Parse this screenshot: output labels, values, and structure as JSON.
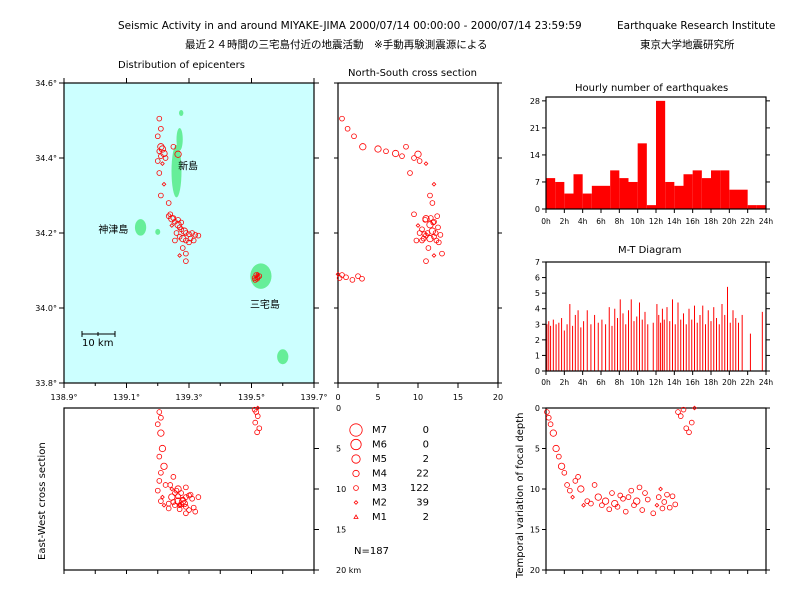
{
  "header": {
    "title_en": "Seismic Activity in and around MIYAKE-JIMA 2000/07/14 00:00:00 - 2000/07/14 23:59:59",
    "institute_en": "Earthquake Research Institute",
    "title_ja": "最近２４時間の三宅島付近の地震活動　※手動再験測震源による",
    "institute_ja": "東京大学地震研究所"
  },
  "colors": {
    "sea": "#ccffff",
    "land": "#66ee99",
    "event": "#ff0000",
    "axis": "#000000"
  },
  "chart_data": [
    {
      "type": "scatter",
      "title": "Distribution of epicenters",
      "xlim": [
        138.9,
        139.7
      ],
      "ylim": [
        33.8,
        34.6
      ],
      "x_ticks": [
        "138.9°",
        "139.1°",
        "139.3°",
        "139.5°",
        "139.7°"
      ],
      "y_ticks": [
        "34.6°",
        "34.4°",
        "34.2°",
        "34.0°",
        "33.8°"
      ],
      "scale_label": "10 km",
      "place_labels": [
        {
          "text": "新島",
          "lon": 139.265,
          "lat": 34.37
        },
        {
          "text": "神津島",
          "lon": 139.01,
          "lat": 34.2
        },
        {
          "text": "三宅島",
          "lon": 139.495,
          "lat": 34.0
        }
      ],
      "islands": [
        {
          "lon": 139.26,
          "lat": 34.365,
          "rlon": 0.016,
          "rlat": 0.07
        },
        {
          "lon": 139.27,
          "lat": 34.45,
          "rlon": 0.01,
          "rlat": 0.03
        },
        {
          "lon": 139.275,
          "lat": 34.52,
          "rlon": 0.007,
          "rlat": 0.008
        },
        {
          "lon": 139.145,
          "lat": 34.215,
          "rlon": 0.018,
          "rlat": 0.022
        },
        {
          "lon": 139.2,
          "lat": 34.203,
          "rlon": 0.008,
          "rlat": 0.008
        },
        {
          "lon": 139.53,
          "lat": 34.085,
          "rlon": 0.034,
          "rlat": 0.034
        },
        {
          "lon": 139.6,
          "lat": 33.87,
          "rlon": 0.018,
          "rlat": 0.02
        }
      ],
      "events": [
        {
          "lon": 139.205,
          "lat": 34.505,
          "depth": 0.5,
          "mag": 3
        },
        {
          "lon": 139.21,
          "lat": 34.478,
          "depth": 1.2,
          "mag": 3
        },
        {
          "lon": 139.2,
          "lat": 34.458,
          "depth": 2.0,
          "mag": 3
        },
        {
          "lon": 139.21,
          "lat": 34.43,
          "depth": 3.1,
          "mag": 4
        },
        {
          "lon": 139.215,
          "lat": 34.424,
          "depth": 5.0,
          "mag": 4
        },
        {
          "lon": 139.205,
          "lat": 34.418,
          "depth": 6.0,
          "mag": 3
        },
        {
          "lon": 139.22,
          "lat": 34.412,
          "depth": 7.2,
          "mag": 4
        },
        {
          "lon": 139.21,
          "lat": 34.405,
          "depth": 8.0,
          "mag": 3
        },
        {
          "lon": 139.225,
          "lat": 34.4,
          "depth": 9.5,
          "mag": 3
        },
        {
          "lon": 139.2,
          "lat": 34.392,
          "depth": 10.2,
          "mag": 3
        },
        {
          "lon": 139.215,
          "lat": 34.385,
          "depth": 11.0,
          "mag": 2
        },
        {
          "lon": 139.205,
          "lat": 34.36,
          "depth": 9.0,
          "mag": 3
        },
        {
          "lon": 139.25,
          "lat": 34.43,
          "depth": 8.5,
          "mag": 3
        },
        {
          "lon": 139.265,
          "lat": 34.41,
          "depth": 10.0,
          "mag": 4
        },
        {
          "lon": 139.22,
          "lat": 34.33,
          "depth": 12.0,
          "mag": 2
        },
        {
          "lon": 139.21,
          "lat": 34.3,
          "depth": 11.5,
          "mag": 3
        },
        {
          "lon": 139.235,
          "lat": 34.28,
          "depth": 11.8,
          "mag": 3
        },
        {
          "lon": 139.24,
          "lat": 34.25,
          "depth": 9.5,
          "mag": 3
        },
        {
          "lon": 139.245,
          "lat": 34.238,
          "depth": 11.0,
          "mag": 4
        },
        {
          "lon": 139.255,
          "lat": 34.23,
          "depth": 12.0,
          "mag": 3
        },
        {
          "lon": 139.265,
          "lat": 34.222,
          "depth": 11.5,
          "mag": 4
        },
        {
          "lon": 139.27,
          "lat": 34.215,
          "depth": 12.5,
          "mag": 3
        },
        {
          "lon": 139.275,
          "lat": 34.21,
          "depth": 10.5,
          "mag": 3
        },
        {
          "lon": 139.285,
          "lat": 34.205,
          "depth": 11.8,
          "mag": 4
        },
        {
          "lon": 139.29,
          "lat": 34.2,
          "depth": 12.2,
          "mag": 3
        },
        {
          "lon": 139.3,
          "lat": 34.197,
          "depth": 10.8,
          "mag": 3
        },
        {
          "lon": 139.31,
          "lat": 34.2,
          "depth": 11.2,
          "mag": 3
        },
        {
          "lon": 139.32,
          "lat": 34.195,
          "depth": 12.8,
          "mag": 3
        },
        {
          "lon": 139.33,
          "lat": 34.193,
          "depth": 11.0,
          "mag": 3
        },
        {
          "lon": 139.26,
          "lat": 34.2,
          "depth": 10.2,
          "mag": 3
        },
        {
          "lon": 139.27,
          "lat": 34.19,
          "depth": 12.0,
          "mag": 3
        },
        {
          "lon": 139.28,
          "lat": 34.185,
          "depth": 11.5,
          "mag": 4
        },
        {
          "lon": 139.29,
          "lat": 34.18,
          "depth": 9.8,
          "mag": 3
        },
        {
          "lon": 139.3,
          "lat": 34.175,
          "depth": 12.6,
          "mag": 3
        },
        {
          "lon": 139.255,
          "lat": 34.18,
          "depth": 10.5,
          "mag": 3
        },
        {
          "lon": 139.28,
          "lat": 34.16,
          "depth": 11.3,
          "mag": 3
        },
        {
          "lon": 139.29,
          "lat": 34.145,
          "depth": 13.0,
          "mag": 3
        },
        {
          "lon": 139.27,
          "lat": 34.14,
          "depth": 12.0,
          "mag": 2
        },
        {
          "lon": 139.29,
          "lat": 34.125,
          "depth": 11.0,
          "mag": 3
        },
        {
          "lon": 139.245,
          "lat": 34.22,
          "depth": 10.0,
          "mag": 2
        },
        {
          "lon": 139.235,
          "lat": 34.245,
          "depth": 12.4,
          "mag": 3
        },
        {
          "lon": 139.25,
          "lat": 34.24,
          "depth": 11.6,
          "mag": 3
        },
        {
          "lon": 139.305,
          "lat": 34.185,
          "depth": 10.7,
          "mag": 3
        },
        {
          "lon": 139.315,
          "lat": 34.18,
          "depth": 12.3,
          "mag": 3
        },
        {
          "lon": 139.265,
          "lat": 34.235,
          "depth": 10.9,
          "mag": 3
        },
        {
          "lon": 139.275,
          "lat": 34.228,
          "depth": 11.9,
          "mag": 3
        },
        {
          "lon": 139.515,
          "lat": 34.088,
          "depth": 0.5,
          "mag": 3
        },
        {
          "lon": 139.52,
          "lat": 34.082,
          "depth": 1.0,
          "mag": 3
        },
        {
          "lon": 139.51,
          "lat": 34.08,
          "depth": 0.2,
          "mag": 3
        },
        {
          "lon": 139.525,
          "lat": 34.085,
          "depth": 2.5,
          "mag": 3
        },
        {
          "lon": 139.518,
          "lat": 34.078,
          "depth": 3.0,
          "mag": 3
        },
        {
          "lon": 139.512,
          "lat": 34.075,
          "depth": 1.8,
          "mag": 3
        },
        {
          "lon": 139.52,
          "lat": 34.09,
          "depth": 0.0,
          "mag": 2
        }
      ]
    },
    {
      "type": "scatter",
      "title": "North-South cross section",
      "xlim": [
        0,
        20
      ],
      "x_ticks": [
        "0",
        "5",
        "10",
        "15",
        "20"
      ]
    },
    {
      "type": "scatter",
      "title": "East-West cross section",
      "ylim": [
        0,
        20
      ],
      "y_ticks": [
        "0",
        "5",
        "10",
        "15",
        "20 km"
      ]
    },
    {
      "type": "bar",
      "title": "Hourly number of earthquakes",
      "categories": [
        "0h",
        "1h",
        "2h",
        "3h",
        "4h",
        "5h",
        "6h",
        "7h",
        "8h",
        "9h",
        "10h",
        "11h",
        "12h",
        "13h",
        "14h",
        "15h",
        "16h",
        "17h",
        "18h",
        "19h",
        "20h",
        "21h",
        "22h",
        "23h"
      ],
      "x_ticks": [
        "0h",
        "2h",
        "4h",
        "6h",
        "8h",
        "10h",
        "12h",
        "14h",
        "16h",
        "18h",
        "20h",
        "22h",
        "24h"
      ],
      "values": [
        8,
        7,
        4,
        9,
        4,
        6,
        6,
        10,
        8,
        7,
        17,
        1,
        28,
        7,
        6,
        9,
        10,
        8,
        10,
        10,
        5,
        5,
        1,
        1
      ],
      "y_ticks": [
        "0",
        "7",
        "14",
        "21",
        "28"
      ],
      "ylim": [
        0,
        29
      ]
    },
    {
      "type": "bar",
      "title": "M-T Diagram",
      "y_ticks": [
        "0",
        "1",
        "2",
        "3",
        "4",
        "5",
        "6",
        "7"
      ],
      "ylim": [
        0,
        7
      ],
      "x_ticks": [
        "0h",
        "2h",
        "4h",
        "6h",
        "8h",
        "10h",
        "12h",
        "14h",
        "16h",
        "18h",
        "20h",
        "22h",
        "24h"
      ],
      "events": [
        {
          "t": 0.1,
          "m": 3.0
        },
        {
          "t": 0.3,
          "m": 3.2
        },
        {
          "t": 0.5,
          "m": 2.9
        },
        {
          "t": 0.8,
          "m": 3.3
        },
        {
          "t": 1.1,
          "m": 3.0
        },
        {
          "t": 1.4,
          "m": 3.1
        },
        {
          "t": 1.7,
          "m": 3.4
        },
        {
          "t": 2.0,
          "m": 2.6
        },
        {
          "t": 2.3,
          "m": 3.0
        },
        {
          "t": 2.6,
          "m": 4.3
        },
        {
          "t": 2.9,
          "m": 2.9
        },
        {
          "t": 3.2,
          "m": 3.6
        },
        {
          "t": 3.5,
          "m": 3.9
        },
        {
          "t": 3.8,
          "m": 2.8
        },
        {
          "t": 4.1,
          "m": 3.2
        },
        {
          "t": 4.5,
          "m": 3.9
        },
        {
          "t": 4.9,
          "m": 3.0
        },
        {
          "t": 5.3,
          "m": 3.6
        },
        {
          "t": 5.7,
          "m": 3.1
        },
        {
          "t": 6.1,
          "m": 3.3
        },
        {
          "t": 6.5,
          "m": 3.0
        },
        {
          "t": 6.9,
          "m": 4.1
        },
        {
          "t": 7.2,
          "m": 2.9
        },
        {
          "t": 7.5,
          "m": 4.0
        },
        {
          "t": 7.8,
          "m": 3.4
        },
        {
          "t": 8.1,
          "m": 4.6
        },
        {
          "t": 8.4,
          "m": 3.7
        },
        {
          "t": 8.7,
          "m": 3.0
        },
        {
          "t": 9.0,
          "m": 3.9
        },
        {
          "t": 9.3,
          "m": 4.6
        },
        {
          "t": 9.6,
          "m": 3.2
        },
        {
          "t": 9.9,
          "m": 3.5
        },
        {
          "t": 10.2,
          "m": 4.4
        },
        {
          "t": 10.5,
          "m": 3.3
        },
        {
          "t": 10.8,
          "m": 3.8
        },
        {
          "t": 11.1,
          "m": 3.0
        },
        {
          "t": 11.7,
          "m": 3.1
        },
        {
          "t": 12.1,
          "m": 4.3
        },
        {
          "t": 12.3,
          "m": 3.6
        },
        {
          "t": 12.5,
          "m": 3.1
        },
        {
          "t": 12.7,
          "m": 4.0
        },
        {
          "t": 12.9,
          "m": 3.3
        },
        {
          "t": 13.2,
          "m": 4.1
        },
        {
          "t": 13.5,
          "m": 3.2
        },
        {
          "t": 13.8,
          "m": 4.6
        },
        {
          "t": 14.1,
          "m": 3.0
        },
        {
          "t": 14.4,
          "m": 4.4
        },
        {
          "t": 14.7,
          "m": 3.3
        },
        {
          "t": 15.0,
          "m": 3.7
        },
        {
          "t": 15.3,
          "m": 3.0
        },
        {
          "t": 15.6,
          "m": 4.0
        },
        {
          "t": 15.9,
          "m": 3.3
        },
        {
          "t": 16.2,
          "m": 4.2
        },
        {
          "t": 16.5,
          "m": 3.1
        },
        {
          "t": 16.8,
          "m": 3.6
        },
        {
          "t": 17.1,
          "m": 4.2
        },
        {
          "t": 17.4,
          "m": 3.0
        },
        {
          "t": 17.7,
          "m": 3.9
        },
        {
          "t": 18.0,
          "m": 3.2
        },
        {
          "t": 18.3,
          "m": 4.1
        },
        {
          "t": 18.6,
          "m": 3.4
        },
        {
          "t": 18.9,
          "m": 3.0
        },
        {
          "t": 19.2,
          "m": 4.3
        },
        {
          "t": 19.5,
          "m": 3.6
        },
        {
          "t": 19.8,
          "m": 5.4
        },
        {
          "t": 20.1,
          "m": 3.1
        },
        {
          "t": 20.4,
          "m": 3.9
        },
        {
          "t": 20.7,
          "m": 3.4
        },
        {
          "t": 21.0,
          "m": 3.1
        },
        {
          "t": 21.4,
          "m": 3.6
        },
        {
          "t": 22.3,
          "m": 2.4
        },
        {
          "t": 23.6,
          "m": 3.8
        }
      ]
    },
    {
      "type": "scatter",
      "title": "Temporal variation of focal depth",
      "ylabel": "Temporal variation of focal depth",
      "ylim": [
        0,
        20
      ],
      "y_ticks": [
        "0",
        "5",
        "10",
        "15",
        "20"
      ],
      "xlim": [
        0,
        24
      ]
    }
  ],
  "legend": {
    "items": [
      {
        "label": "M7",
        "count": "0"
      },
      {
        "label": "M6",
        "count": "0"
      },
      {
        "label": "M5",
        "count": "2"
      },
      {
        "label": "M4",
        "count": "22"
      },
      {
        "label": "M3",
        "count": "122"
      },
      {
        "label": "M2",
        "count": "39"
      },
      {
        "label": "M1",
        "count": "2"
      }
    ],
    "total": "N=187"
  },
  "ew_ylabel": "East-West cross section"
}
